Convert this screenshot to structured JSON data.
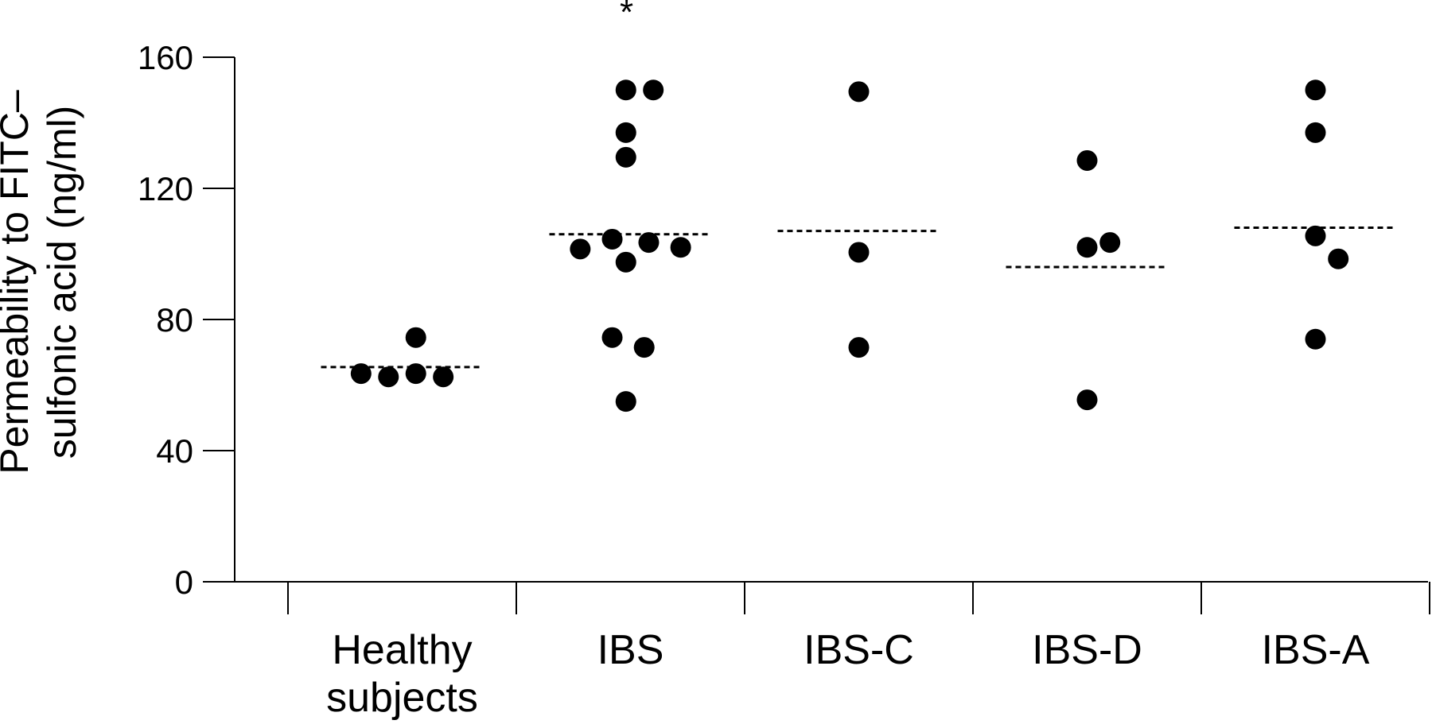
{
  "chart_data": {
    "type": "scatter",
    "title": "",
    "xlabel": "",
    "ylabel_lines": [
      "Permeability to FITC–",
      "sulfonic acid (ng/ml)"
    ],
    "yticks": [
      0,
      40,
      80,
      120,
      160
    ],
    "ylim": [
      0,
      160
    ],
    "grid": false,
    "legend": "none",
    "point_color": "#000000",
    "groups": [
      {
        "label_lines": [
          "Healthy",
          "subjects"
        ],
        "points": [
          {
            "offset": -0.18,
            "value": 63.5
          },
          {
            "offset": -0.06,
            "value": 62.5
          },
          {
            "offset": 0.06,
            "value": 74.5
          },
          {
            "offset": 0.06,
            "value": 63.5
          },
          {
            "offset": 0.18,
            "value": 62.5
          }
        ],
        "median": 65.5,
        "annotation": ""
      },
      {
        "label_lines": [
          "IBS"
        ],
        "points": [
          {
            "offset": -0.22,
            "value": 101.5
          },
          {
            "offset": -0.08,
            "value": 104.5
          },
          {
            "offset": 0.08,
            "value": 103.5
          },
          {
            "offset": 0.22,
            "value": 102.0
          },
          {
            "offset": -0.02,
            "value": 150.0
          },
          {
            "offset": 0.1,
            "value": 150.0
          },
          {
            "offset": -0.02,
            "value": 137.0
          },
          {
            "offset": -0.02,
            "value": 129.5
          },
          {
            "offset": -0.02,
            "value": 97.5
          },
          {
            "offset": -0.08,
            "value": 74.5
          },
          {
            "offset": 0.06,
            "value": 71.5
          },
          {
            "offset": -0.02,
            "value": 55.0
          }
        ],
        "median": 106.0,
        "annotation": "*"
      },
      {
        "label_lines": [
          "IBS-C"
        ],
        "points": [
          {
            "offset": 0.0,
            "value": 149.5
          },
          {
            "offset": 0.0,
            "value": 100.5
          },
          {
            "offset": 0.0,
            "value": 71.5
          }
        ],
        "median": 107.0,
        "annotation": ""
      },
      {
        "label_lines": [
          "IBS-D"
        ],
        "points": [
          {
            "offset": 0.0,
            "value": 128.5
          },
          {
            "offset": 0.0,
            "value": 102.0
          },
          {
            "offset": 0.1,
            "value": 103.5
          },
          {
            "offset": 0.0,
            "value": 55.5
          }
        ],
        "median": 96.0,
        "annotation": ""
      },
      {
        "label_lines": [
          "IBS-A"
        ],
        "points": [
          {
            "offset": 0.0,
            "value": 150.0
          },
          {
            "offset": 0.0,
            "value": 137.0
          },
          {
            "offset": 0.0,
            "value": 105.5
          },
          {
            "offset": 0.1,
            "value": 98.5
          },
          {
            "offset": 0.0,
            "value": 74.0
          }
        ],
        "median": 108.0,
        "annotation": ""
      }
    ]
  }
}
